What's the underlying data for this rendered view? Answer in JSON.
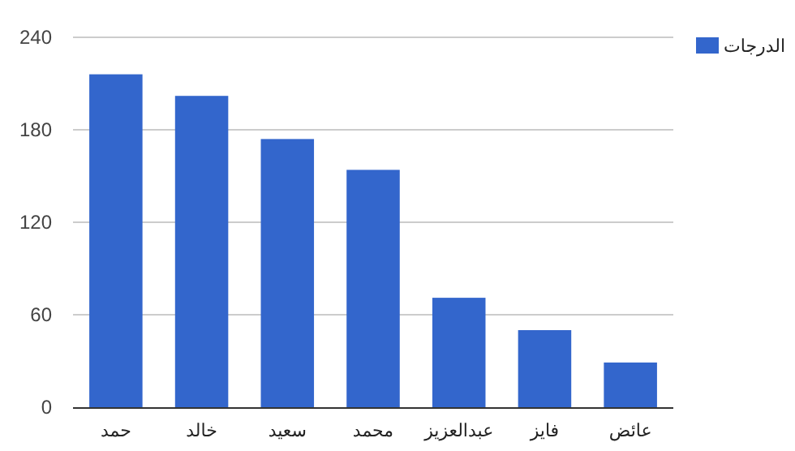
{
  "chart_data": {
    "type": "bar",
    "categories": [
      "حمد",
      "خالد",
      "سعيد",
      "محمد",
      "عبدالعزيز",
      "فايز",
      "عائض"
    ],
    "series": [
      {
        "name": "الدرجات",
        "color": "#3366cc",
        "values": [
          216,
          202,
          174,
          154,
          71,
          50,
          29
        ]
      }
    ],
    "ylim": [
      0,
      240
    ],
    "yticks": [
      0,
      60,
      120,
      180,
      240
    ],
    "grid": "y",
    "legend": "top right"
  }
}
